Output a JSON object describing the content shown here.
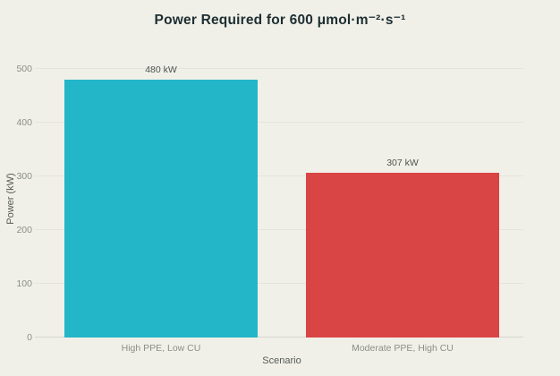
{
  "colors": {
    "background": "#f0f0e9",
    "bar_teal": "#23b5c8",
    "bar_red": "#d94444",
    "gridline": "#e4e4dc",
    "baseline": "#d6d6ce",
    "title_text": "#1e2e31",
    "tick_text": "#8b8e87",
    "axis_title_text": "#565b56",
    "bar_label_text": "#50544f"
  },
  "chart_data": {
    "type": "bar",
    "title": "Power Required for 600 μmol·m⁻²·s⁻¹",
    "categories": [
      "High PPE, Low CU",
      "Moderate PPE, High CU"
    ],
    "values": [
      480,
      307
    ],
    "bar_labels": [
      "480 kW",
      "307 kW"
    ],
    "bar_colors": [
      "#23b5c8",
      "#d94444"
    ],
    "xlabel": "Scenario",
    "ylabel": "Power (kW)",
    "ylim": [
      0,
      500
    ],
    "yticks": [
      0,
      100,
      200,
      300,
      400,
      500
    ],
    "grid": "horizontal",
    "legend": "none"
  }
}
